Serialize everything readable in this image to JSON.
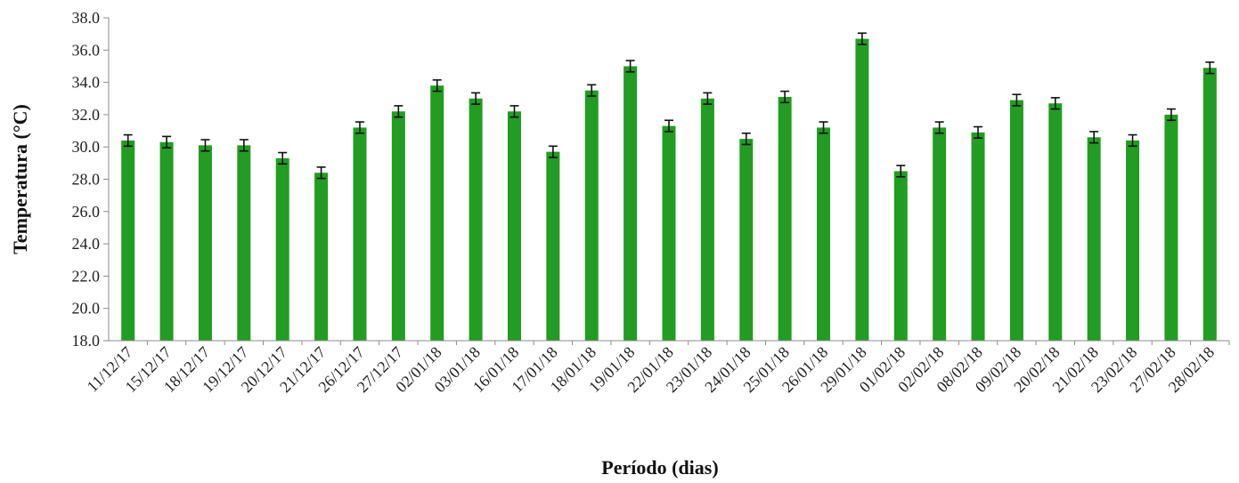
{
  "chart_data": {
    "type": "bar",
    "xlabel": "Período (dias)",
    "ylabel": "Temperatura (°C)",
    "ylim": [
      18.0,
      38.0
    ],
    "ytick_step": 2.0,
    "yticks": [
      "18.0",
      "20.0",
      "22.0",
      "24.0",
      "26.0",
      "28.0",
      "30.0",
      "32.0",
      "34.0",
      "36.0",
      "38.0"
    ],
    "grid": false,
    "bar_color": "#229c22",
    "error_bar_color": "#111111",
    "categories": [
      "11/12/17",
      "15/12/17",
      "18/12/17",
      "19/12/17",
      "20/12/17",
      "21/12/17",
      "26/12/17",
      "27/12/17",
      "02/01/18",
      "03/01/18",
      "16/01/18",
      "17/01/18",
      "18/01/18",
      "19/01/18",
      "22/01/18",
      "23/01/18",
      "24/01/18",
      "25/01/18",
      "26/01/18",
      "29/01/18",
      "01/02/18",
      "02/02/18",
      "08/02/18",
      "09/02/18",
      "20/02/18",
      "21/02/18",
      "23/02/18",
      "27/02/18",
      "28/02/18"
    ],
    "values": [
      30.4,
      30.3,
      30.1,
      30.1,
      29.3,
      28.4,
      31.2,
      32.2,
      33.8,
      33.0,
      32.2,
      29.7,
      33.5,
      35.0,
      31.3,
      33.0,
      30.5,
      33.1,
      31.2,
      36.7,
      28.5,
      31.2,
      30.9,
      32.9,
      32.7,
      30.6,
      30.4,
      32.0,
      34.9
    ],
    "errors": [
      0.35,
      0.35,
      0.35,
      0.35,
      0.35,
      0.35,
      0.35,
      0.35,
      0.35,
      0.35,
      0.35,
      0.35,
      0.35,
      0.35,
      0.35,
      0.35,
      0.35,
      0.35,
      0.35,
      0.35,
      0.35,
      0.35,
      0.35,
      0.35,
      0.35,
      0.35,
      0.35,
      0.35,
      0.35
    ]
  }
}
